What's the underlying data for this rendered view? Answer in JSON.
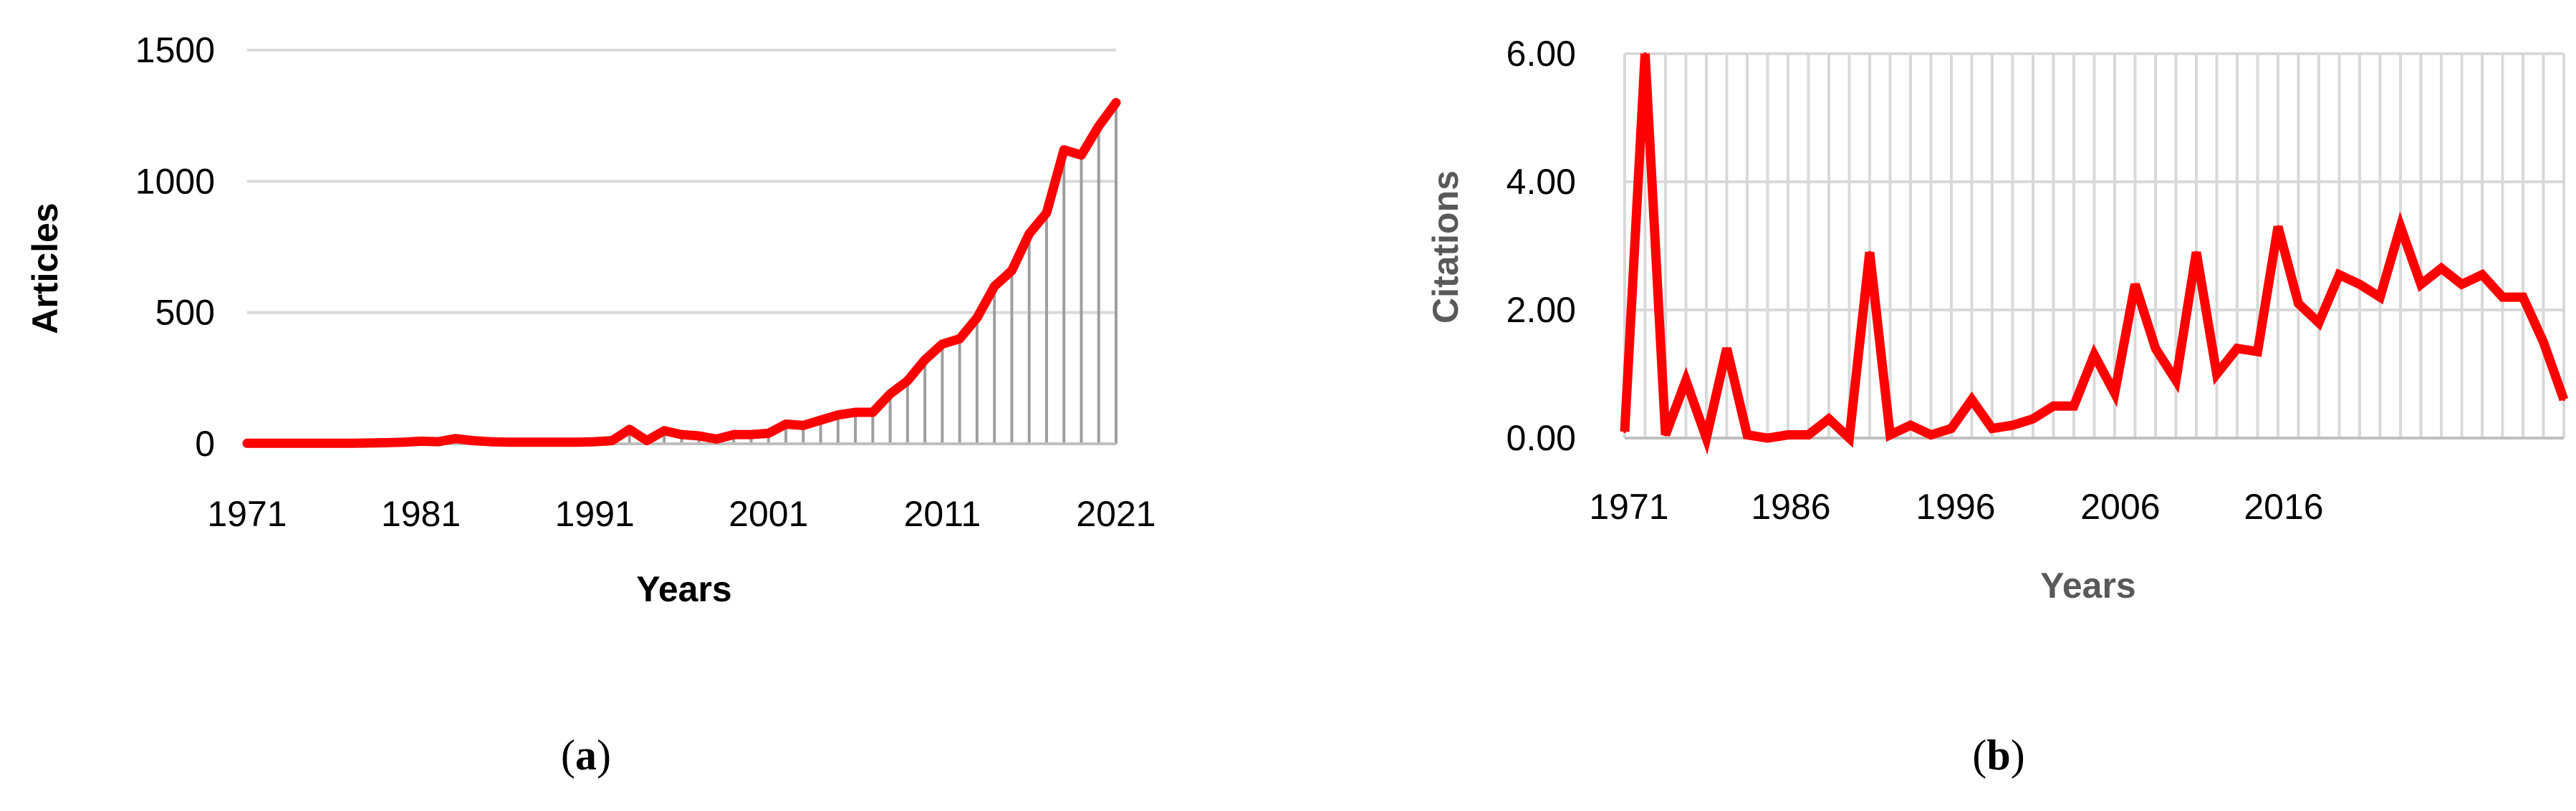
{
  "chart_data": [
    {
      "type": "line",
      "panel_label": "a",
      "xlabel": "Years",
      "ylabel": "Articles",
      "ylim": [
        0,
        1500
      ],
      "yticks": [
        0,
        500,
        1000,
        1500
      ],
      "xticks": [
        "1971",
        "1981",
        "1991",
        "2001",
        "2011",
        "2021"
      ],
      "grid": true,
      "drop_lines": true,
      "x": [
        1971,
        1972,
        1973,
        1974,
        1975,
        1976,
        1977,
        1978,
        1979,
        1980,
        1981,
        1982,
        1983,
        1984,
        1985,
        1986,
        1987,
        1988,
        1989,
        1990,
        1991,
        1992,
        1993,
        1994,
        1995,
        1996,
        1997,
        1998,
        1999,
        2000,
        2001,
        2002,
        2003,
        2004,
        2005,
        2006,
        2007,
        2008,
        2009,
        2010,
        2011,
        2012,
        2013,
        2014,
        2015,
        2016,
        2017,
        2018,
        2019,
        2020,
        2021
      ],
      "series": [
        {
          "values": [
            2,
            2,
            2,
            2,
            2,
            2,
            2,
            3,
            4,
            6,
            10,
            8,
            20,
            12,
            8,
            6,
            6,
            6,
            6,
            6,
            8,
            12,
            55,
            12,
            50,
            35,
            30,
            18,
            35,
            35,
            40,
            75,
            70,
            90,
            110,
            120,
            120,
            190,
            240,
            320,
            380,
            400,
            480,
            600,
            660,
            800,
            880,
            1120,
            1100,
            1210,
            1300
          ]
        }
      ],
      "colors": {
        "line": "#ff0000",
        "drop": "#9e9e9e",
        "grid": "#d9d9d9",
        "axis": "#bfbfbf"
      }
    },
    {
      "type": "line",
      "panel_label": "b",
      "xlabel": "Years",
      "ylabel": "Citations",
      "ylim": [
        0,
        6
      ],
      "yticks": [
        "0.00",
        "2.00",
        "4.00",
        "6.00"
      ],
      "xticks": [
        "1971",
        "1986",
        "1996",
        "2006",
        "2016"
      ],
      "grid": true,
      "vertical_grid": true,
      "categories_count": 47,
      "series": [
        {
          "values": [
            0.1,
            6.0,
            0.05,
            0.9,
            0.0,
            1.4,
            0.05,
            0.0,
            0.05,
            0.05,
            0.3,
            0.0,
            2.9,
            0.05,
            0.2,
            0.05,
            0.15,
            0.6,
            0.15,
            0.2,
            0.3,
            0.5,
            0.5,
            1.3,
            0.7,
            2.4,
            1.4,
            0.9,
            2.9,
            1.0,
            1.4,
            1.35,
            3.3,
            2.1,
            1.8,
            2.55,
            2.4,
            2.2,
            3.3,
            2.4,
            2.65,
            2.4,
            2.55,
            2.2,
            2.2,
            1.5,
            0.6
          ]
        }
      ],
      "colors": {
        "line": "#ff0000",
        "grid": "#d9d9d9",
        "axis": "#bfbfbf",
        "axis_title": "#595959"
      }
    }
  ]
}
